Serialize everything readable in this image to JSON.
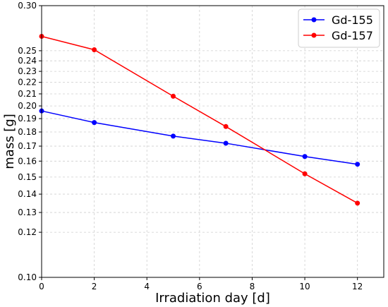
{
  "chart_data": {
    "type": "line",
    "title": "",
    "xlabel": "Irradiation day [d]",
    "ylabel": "mass [g]",
    "x_scale": "linear",
    "y_scale": "log",
    "xlim": [
      0,
      13
    ],
    "ylim": [
      0.1,
      0.3
    ],
    "x_ticks": [
      0,
      2,
      4,
      6,
      8,
      10,
      12
    ],
    "x_tick_labels": [
      "0",
      "2",
      "4",
      "6",
      "8",
      "10",
      "12"
    ],
    "y_ticks": [
      0.1,
      0.12,
      0.13,
      0.14,
      0.15,
      0.16,
      0.17,
      0.18,
      0.19,
      0.2,
      0.21,
      0.22,
      0.23,
      0.24,
      0.25,
      0.3
    ],
    "y_tick_labels": [
      "0.10",
      "0.12",
      "0.13",
      "0.14",
      "0.15",
      "0.16",
      "0.17",
      "0.18",
      "0.19",
      "0.20",
      "0.21",
      "0.22",
      "0.23",
      "0.24",
      "0.25",
      "0.30"
    ],
    "grid": true,
    "legend_position": "top-right",
    "series": [
      {
        "name": "Gd-155",
        "color": "#0000ff",
        "marker": "circle",
        "x": [
          0,
          2,
          5,
          7,
          10,
          12
        ],
        "y": [
          0.196,
          0.187,
          0.177,
          0.172,
          0.163,
          0.158
        ]
      },
      {
        "name": "Gd-157",
        "color": "#ff0000",
        "marker": "circle",
        "x": [
          0,
          2,
          5,
          7,
          10,
          12
        ],
        "y": [
          0.265,
          0.251,
          0.208,
          0.184,
          0.152,
          0.135
        ]
      }
    ]
  }
}
